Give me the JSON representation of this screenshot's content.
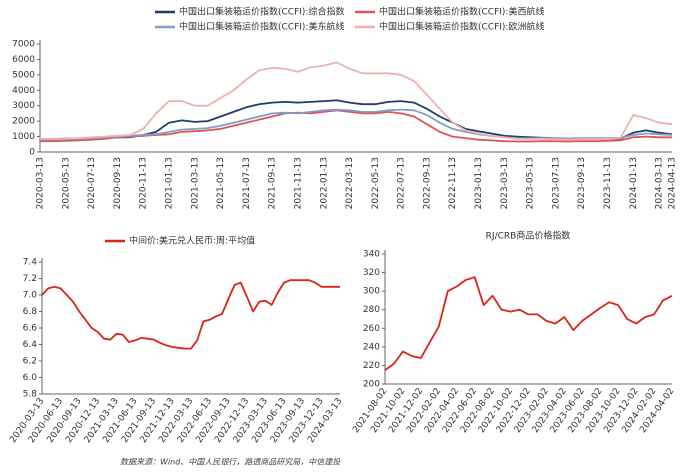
{
  "chart_data": [
    {
      "type": "line",
      "categories": [
        "2020-03-13",
        null,
        "2020-05-13",
        null,
        "2020-07-13",
        null,
        "2020-09-13",
        null,
        "2020-11-13",
        null,
        "2021-01-13",
        null,
        "2021-03-13",
        null,
        "2021-05-13",
        null,
        "2021-07-13",
        null,
        "2021-09-13",
        null,
        "2021-11-13",
        null,
        "2022-01-13",
        null,
        "2022-03-13",
        null,
        "2022-05-13",
        null,
        "2022-07-13",
        null,
        "2022-09-13",
        null,
        "2022-11-13",
        null,
        "2023-01-13",
        null,
        "2023-03-13",
        null,
        "2023-05-13",
        null,
        "2023-07-13",
        null,
        "2023-09-13",
        null,
        "2023-11-13",
        null,
        "2024-01-13",
        null,
        "2024-03-13",
        "2024-04-13"
      ],
      "series": [
        {
          "name": "中国出口集装箱运价指数(CCFI):综合指数",
          "color": "#1f3d6e",
          "values": [
            850,
            850,
            870,
            880,
            900,
            920,
            940,
            960,
            1100,
            1300,
            1900,
            2050,
            1950,
            2000,
            2300,
            2600,
            2900,
            3100,
            3200,
            3250,
            3200,
            3250,
            3300,
            3350,
            3200,
            3100,
            3100,
            3250,
            3300,
            3200,
            2800,
            2300,
            1900,
            1500,
            1350,
            1200,
            1050,
            1000,
            950,
            920,
            880,
            880,
            870,
            850,
            850,
            860,
            1250,
            1400,
            1250,
            1150
          ]
        },
        {
          "name": "中国出口集装箱运价指数(CCFI):美西航线",
          "color": "#e0525a",
          "values": [
            700,
            700,
            720,
            750,
            800,
            850,
            950,
            1000,
            1050,
            1100,
            1150,
            1300,
            1350,
            1400,
            1500,
            1700,
            1900,
            2100,
            2300,
            2500,
            2550,
            2500,
            2600,
            2700,
            2600,
            2500,
            2500,
            2600,
            2500,
            2300,
            1800,
            1300,
            1000,
            900,
            800,
            750,
            700,
            680,
            680,
            700,
            700,
            680,
            700,
            700,
            720,
            750,
            950,
            1000,
            950,
            950
          ]
        },
        {
          "name": "中国出口集装箱运价指数(CCFI):美东航线",
          "color": "#7f9fc4",
          "values": [
            800,
            800,
            820,
            850,
            900,
            950,
            1000,
            1050,
            1100,
            1150,
            1300,
            1450,
            1500,
            1550,
            1700,
            1900,
            2100,
            2300,
            2500,
            2550,
            2500,
            2600,
            2700,
            2750,
            2700,
            2600,
            2600,
            2700,
            2750,
            2700,
            2400,
            1900,
            1500,
            1300,
            1150,
            1050,
            950,
            900,
            880,
            900,
            900,
            880,
            900,
            900,
            900,
            920,
            1100,
            1200,
            1150,
            1100
          ]
        },
        {
          "name": "中国出口集装箱运价指数(CCFI):欧洲航线",
          "color": "#f0b0b0",
          "values": [
            850,
            850,
            870,
            900,
            950,
            1000,
            1050,
            1100,
            1500,
            2500,
            3300,
            3300,
            3000,
            3000,
            3500,
            4000,
            4700,
            5300,
            5450,
            5400,
            5200,
            5500,
            5600,
            5800,
            5400,
            5100,
            5100,
            5100,
            5000,
            4600,
            3700,
            2800,
            1900,
            1400,
            1200,
            1050,
            950,
            850,
            850,
            850,
            800,
            800,
            820,
            820,
            850,
            900,
            2400,
            2200,
            1900,
            1800
          ]
        }
      ],
      "ylim": [
        0,
        7000
      ],
      "yticks": [
        0,
        1000,
        2000,
        3000,
        4000,
        5000,
        6000,
        7000
      ],
      "grid": false
    },
    {
      "type": "line",
      "categories": [
        "2020-03-13",
        null,
        null,
        "2020-06-13",
        null,
        null,
        "2020-09-13",
        null,
        null,
        "2020-12-13",
        null,
        null,
        "2021-03-13",
        null,
        null,
        "2021-06-13",
        null,
        null,
        "2021-09-13",
        null,
        null,
        "2021-12-13",
        null,
        null,
        "2022-03-13",
        null,
        null,
        "2022-06-13",
        null,
        null,
        "2022-09-13",
        null,
        null,
        "2022-12-13",
        null,
        null,
        "2023-03-13",
        null,
        null,
        "2023-06-13",
        null,
        null,
        "2023-09-13",
        null,
        null,
        "2023-12-13",
        null,
        null,
        "2024-03-13"
      ],
      "series": [
        {
          "name": "中间价:美元兑人民币:周:平均值",
          "color": "#d9251c",
          "values": [
            7.0,
            7.08,
            7.1,
            7.08,
            7.0,
            6.92,
            6.8,
            6.7,
            6.6,
            6.55,
            6.47,
            6.46,
            6.53,
            6.52,
            6.43,
            6.45,
            6.48,
            6.47,
            6.46,
            6.42,
            6.39,
            6.37,
            6.36,
            6.35,
            6.35,
            6.45,
            6.68,
            6.7,
            6.74,
            6.77,
            6.95,
            7.12,
            7.15,
            6.98,
            6.8,
            6.92,
            6.93,
            6.88,
            7.03,
            7.15,
            7.18,
            7.18,
            7.18,
            7.18,
            7.15,
            7.1,
            7.1,
            7.1,
            7.1
          ]
        }
      ],
      "ylim": [
        5.8,
        7.4
      ],
      "yticks": [
        5.8,
        {
          "value": 6,
          "label": "6.0"
        },
        6.2,
        6.4,
        6.6,
        6.8,
        {
          "value": 7,
          "label": "7.0"
        },
        7.2,
        7.4
      ],
      "grid": false
    },
    {
      "type": "line",
      "title": "RJ/CRB商品价格指数",
      "categories": [
        "2021-08-02",
        null,
        "2021-10-02",
        null,
        "2021-12-02",
        null,
        "2022-02-02",
        null,
        "2022-04-02",
        null,
        "2022-06-02",
        null,
        "2022-08-02",
        null,
        "2022-10-02",
        null,
        "2022-12-02",
        null,
        "2023-02-02",
        null,
        "2023-04-02",
        null,
        "2023-06-02",
        null,
        "2023-08-02",
        null,
        "2023-10-02",
        null,
        "2023-12-02",
        null,
        "2024-02-02",
        null,
        "2024-04-02"
      ],
      "series": [
        {
          "color": "#d9251c",
          "values": [
            215,
            222,
            235,
            230,
            228,
            245,
            262,
            300,
            305,
            312,
            315,
            285,
            295,
            280,
            278,
            280,
            275,
            275,
            268,
            265,
            272,
            258,
            268,
            275,
            282,
            288,
            285,
            270,
            265,
            272,
            275,
            290,
            295
          ]
        }
      ],
      "ylim": [
        200,
        340
      ],
      "yticks": [
        200,
        220,
        240,
        260,
        280,
        300,
        320,
        340
      ],
      "grid": false
    }
  ],
  "source": "数据来源：Wind、中国人民银行，路透商品研究局，中信建投"
}
